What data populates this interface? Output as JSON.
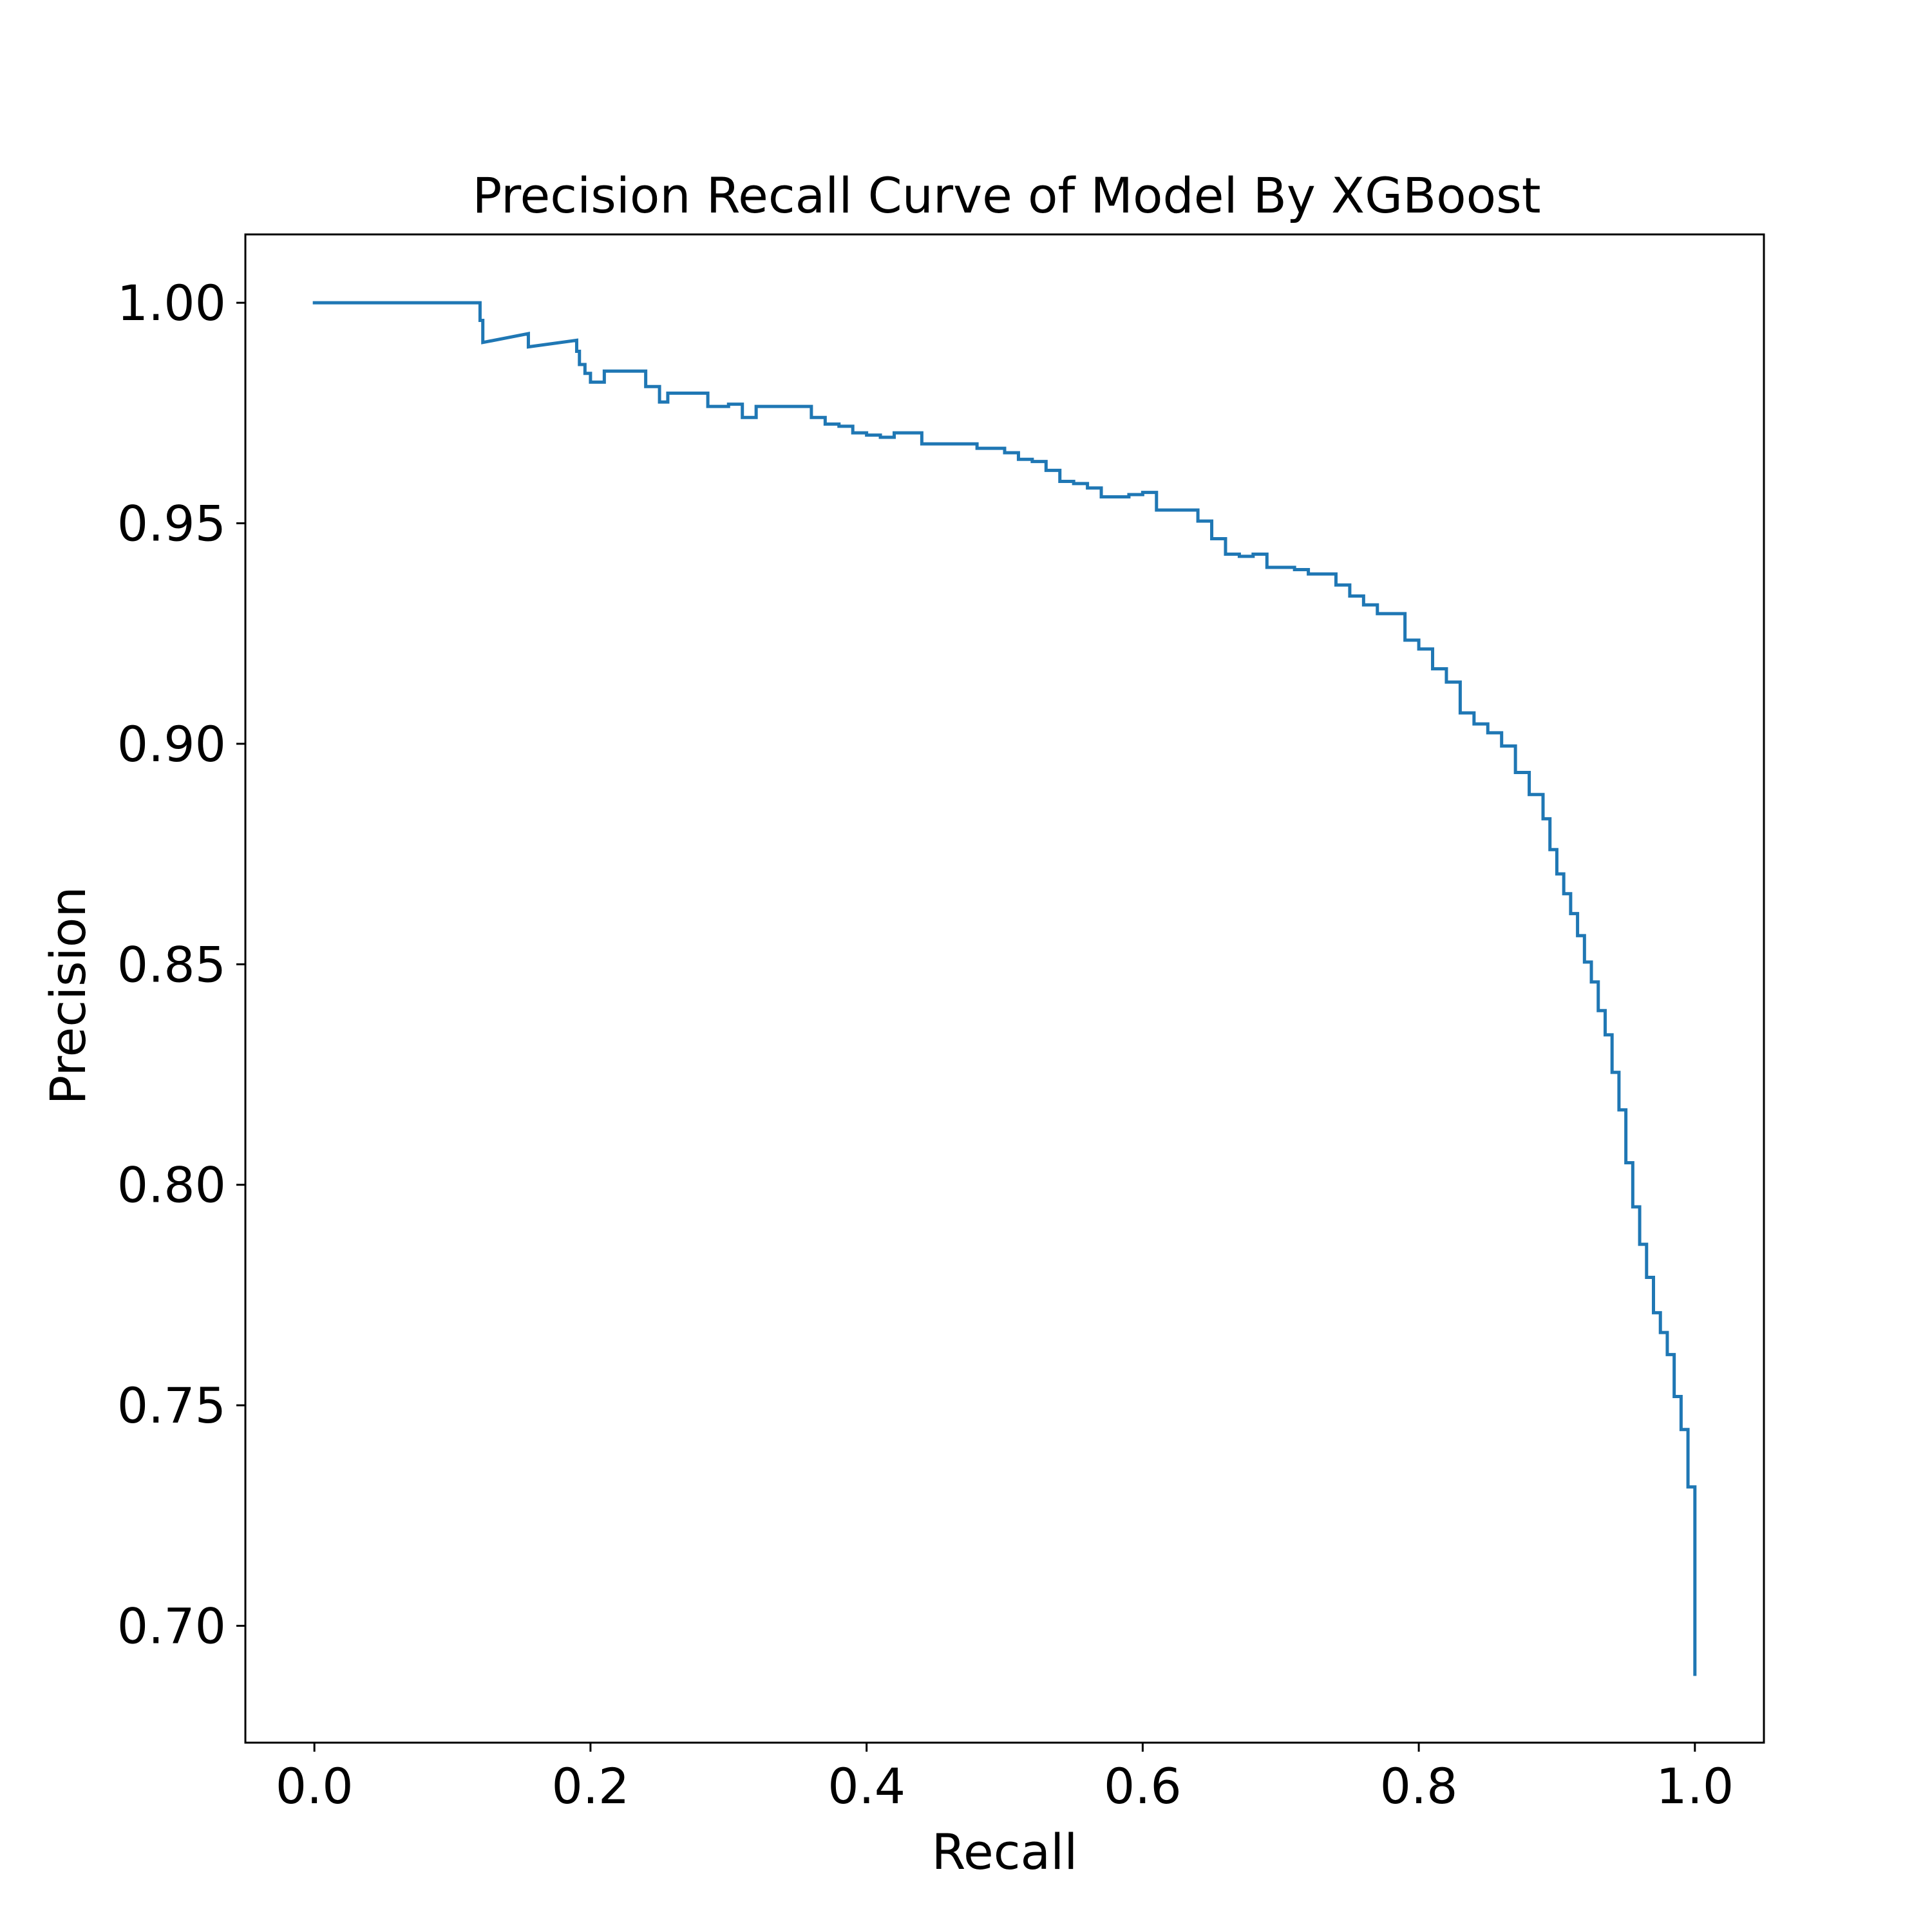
{
  "chart_data": {
    "type": "line",
    "title": "Precision Recall Curve of Model By XGBoost",
    "xlabel": "Recall",
    "ylabel": "Precision",
    "xlim": [
      -0.05,
      1.05
    ],
    "ylim": [
      0.6735,
      1.0155
    ],
    "xticks": [
      "0.0",
      "0.2",
      "0.4",
      "0.6",
      "0.8",
      "1.0"
    ],
    "yticks": [
      "0.70",
      "0.75",
      "0.80",
      "0.85",
      "0.90",
      "0.95",
      "1.00"
    ],
    "grid": false,
    "line_color": "#1f77b4",
    "series": [
      {
        "x": [
          0.0,
          0.12,
          0.12,
          0.122,
          0.122,
          0.155,
          0.155,
          0.19,
          0.19,
          0.192,
          0.192,
          0.196,
          0.196,
          0.2,
          0.2,
          0.21,
          0.21,
          0.24,
          0.24,
          0.25,
          0.25,
          0.256,
          0.256,
          0.285,
          0.285,
          0.3,
          0.3,
          0.31,
          0.31,
          0.32,
          0.32,
          0.36,
          0.36,
          0.37,
          0.37,
          0.38,
          0.38,
          0.39,
          0.39,
          0.4,
          0.4,
          0.41,
          0.41,
          0.42,
          0.42,
          0.44,
          0.44,
          0.48,
          0.48,
          0.5,
          0.5,
          0.51,
          0.51,
          0.52,
          0.52,
          0.53,
          0.53,
          0.54,
          0.54,
          0.55,
          0.55,
          0.56,
          0.56,
          0.57,
          0.57,
          0.59,
          0.59,
          0.6,
          0.6,
          0.61,
          0.61,
          0.64,
          0.64,
          0.65,
          0.65,
          0.66,
          0.66,
          0.67,
          0.67,
          0.68,
          0.68,
          0.69,
          0.69,
          0.71,
          0.71,
          0.72,
          0.72,
          0.74,
          0.74,
          0.75,
          0.75,
          0.76,
          0.76,
          0.77,
          0.77,
          0.79,
          0.79,
          0.8,
          0.8,
          0.81,
          0.81,
          0.82,
          0.82,
          0.83,
          0.83,
          0.84,
          0.84,
          0.85,
          0.85,
          0.86,
          0.86,
          0.87,
          0.87,
          0.88,
          0.88,
          0.89,
          0.89,
          0.895,
          0.895,
          0.9,
          0.9,
          0.905,
          0.905,
          0.91,
          0.91,
          0.915,
          0.915,
          0.92,
          0.92,
          0.925,
          0.925,
          0.93,
          0.93,
          0.935,
          0.935,
          0.94,
          0.94,
          0.945,
          0.945,
          0.95,
          0.95,
          0.955,
          0.955,
          0.96,
          0.96,
          0.965,
          0.965,
          0.97,
          0.97,
          0.975,
          0.975,
          0.98,
          0.98,
          0.985,
          0.985,
          0.99,
          0.99,
          0.995,
          0.995,
          1.0,
          1.0
        ],
        "y": [
          1.0,
          1.0,
          0.996,
          0.996,
          0.991,
          0.993,
          0.99,
          0.9915,
          0.989,
          0.989,
          0.986,
          0.986,
          0.984,
          0.984,
          0.982,
          0.982,
          0.9845,
          0.9845,
          0.981,
          0.981,
          0.9775,
          0.9775,
          0.9795,
          0.9795,
          0.9765,
          0.9765,
          0.977,
          0.977,
          0.974,
          0.974,
          0.9765,
          0.9765,
          0.974,
          0.974,
          0.9725,
          0.9725,
          0.972,
          0.972,
          0.9705,
          0.9705,
          0.97,
          0.97,
          0.9695,
          0.9695,
          0.9705,
          0.9705,
          0.968,
          0.968,
          0.967,
          0.967,
          0.966,
          0.966,
          0.9645,
          0.9645,
          0.964,
          0.964,
          0.962,
          0.962,
          0.9595,
          0.9595,
          0.959,
          0.959,
          0.958,
          0.958,
          0.956,
          0.956,
          0.9565,
          0.9565,
          0.957,
          0.957,
          0.953,
          0.953,
          0.9505,
          0.9505,
          0.9465,
          0.9465,
          0.943,
          0.943,
          0.9425,
          0.9425,
          0.943,
          0.943,
          0.94,
          0.94,
          0.9395,
          0.9395,
          0.9385,
          0.9385,
          0.936,
          0.936,
          0.9335,
          0.9335,
          0.9315,
          0.9315,
          0.9295,
          0.9295,
          0.9235,
          0.9235,
          0.9215,
          0.9215,
          0.917,
          0.917,
          0.914,
          0.914,
          0.907,
          0.907,
          0.9045,
          0.9045,
          0.9025,
          0.9025,
          0.8995,
          0.8995,
          0.8935,
          0.8935,
          0.8885,
          0.8885,
          0.883,
          0.883,
          0.876,
          0.876,
          0.8705,
          0.8705,
          0.866,
          0.866,
          0.8615,
          0.8615,
          0.8565,
          0.8565,
          0.8505,
          0.8505,
          0.846,
          0.846,
          0.8395,
          0.8395,
          0.834,
          0.834,
          0.8255,
          0.8255,
          0.817,
          0.817,
          0.805,
          0.805,
          0.795,
          0.795,
          0.7865,
          0.7865,
          0.779,
          0.779,
          0.771,
          0.771,
          0.7665,
          0.7665,
          0.7615,
          0.7615,
          0.752,
          0.752,
          0.7445,
          0.7445,
          0.7315,
          0.7315,
          0.689
        ]
      }
    ]
  }
}
